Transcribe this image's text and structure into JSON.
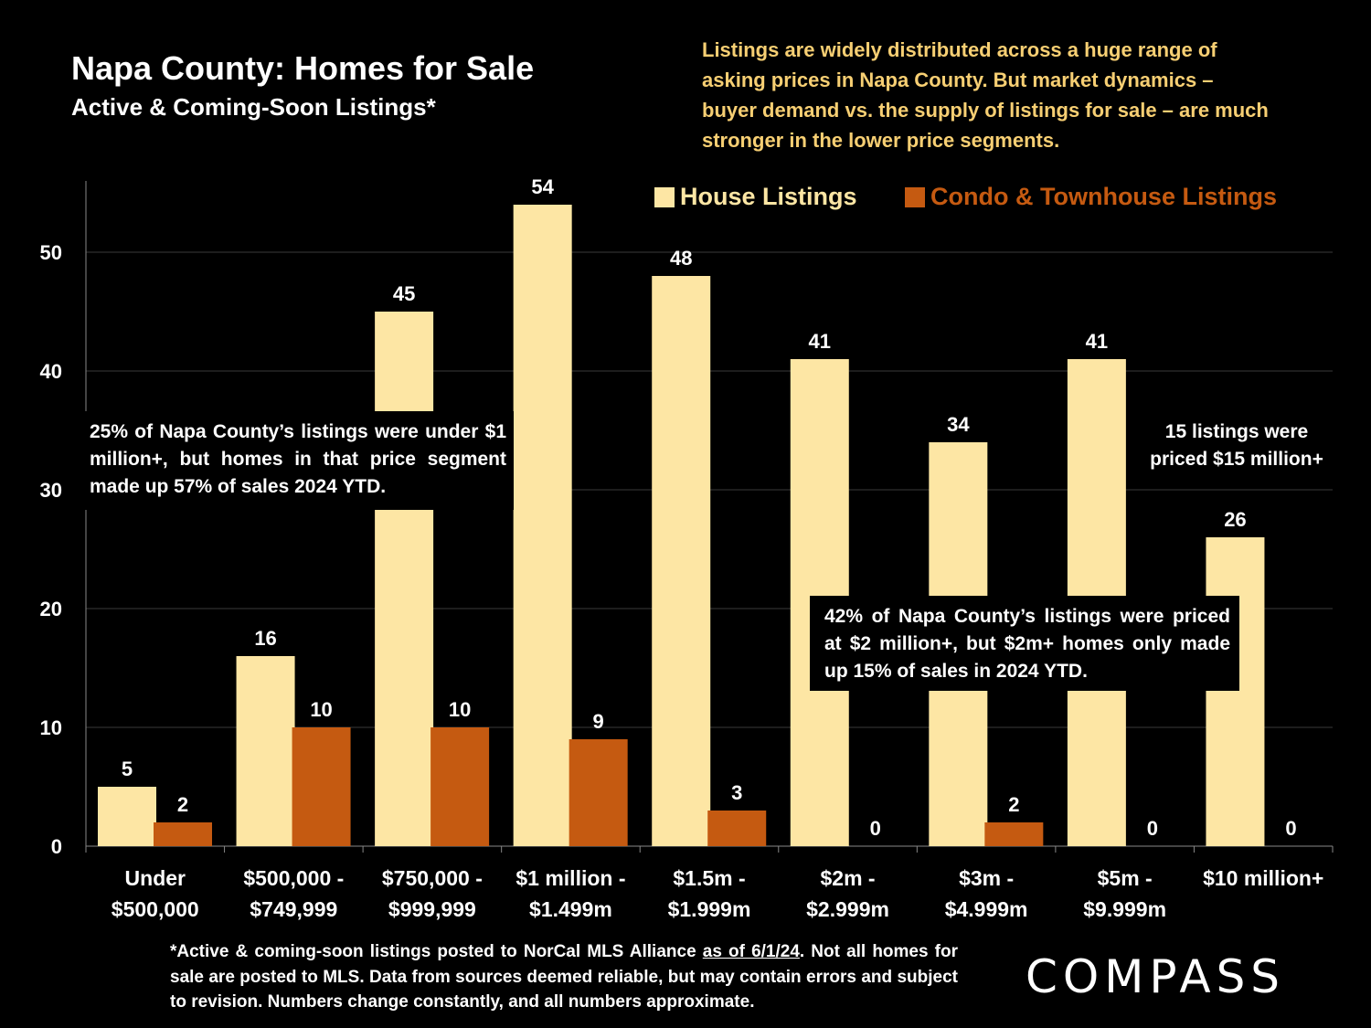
{
  "header": {
    "title": "Napa County: Homes for Sale",
    "subtitle": "Active & Coming-Soon Listings*"
  },
  "top_note": "Listings are widely distributed across a huge range of asking prices in Napa County. But market dynamics – buyer demand vs. the supply of listings for sale – are much stronger in the lower price segments.",
  "colors": {
    "house": "#fde6a4",
    "condo": "#c55a11",
    "note": "#f7cf73",
    "background": "#000000",
    "gridline": "#3a3a3a"
  },
  "callouts": {
    "left": "25% of Napa County’s listings were under $1 million+, but homes in that price segment made up 57% of sales 2024 YTD.",
    "right": "42% of Napa County’s listings were priced at $2 million+, but $2m+ homes only made up 15% of sales in 2024 YTD.",
    "top_right_line1": "15 listings were",
    "top_right_line2": "priced $15 million+"
  },
  "footnote": {
    "part1": "*Active & coming-soon listings posted to NorCal MLS Alliance ",
    "underlined": "as of 6/1/24",
    "part2": ". Not all homes for sale are posted to MLS. Data from sources deemed reliable, but may contain errors and subject to revision. Numbers change constantly, and all numbers approximate."
  },
  "logo": {
    "text": "COMPASS"
  },
  "chart_data": {
    "type": "bar",
    "title": "Napa County: Homes for Sale",
    "xlabel": "",
    "ylabel": "",
    "ylim": [
      0,
      56
    ],
    "yticks": [
      0,
      10,
      20,
      30,
      40,
      50
    ],
    "grid": true,
    "legend_position": "top-right",
    "categories": [
      [
        "Under",
        "$500,000"
      ],
      [
        "$500,000 -",
        "$749,999"
      ],
      [
        "$750,000 -",
        "$999,999"
      ],
      [
        "$1 million -",
        "$1.499m"
      ],
      [
        "$1.5m -",
        "$1.999m"
      ],
      [
        "$2m -",
        "$2.999m"
      ],
      [
        "$3m -",
        "$4.999m"
      ],
      [
        "$5m -",
        "$9.999m"
      ],
      [
        "$10 million+",
        ""
      ]
    ],
    "series": [
      {
        "name": "House Listings",
        "values": [
          5,
          16,
          45,
          54,
          48,
          41,
          34,
          41,
          26
        ]
      },
      {
        "name": "Condo & Townhouse Listings",
        "values": [
          2,
          10,
          10,
          9,
          3,
          0,
          2,
          0,
          0
        ]
      }
    ]
  }
}
